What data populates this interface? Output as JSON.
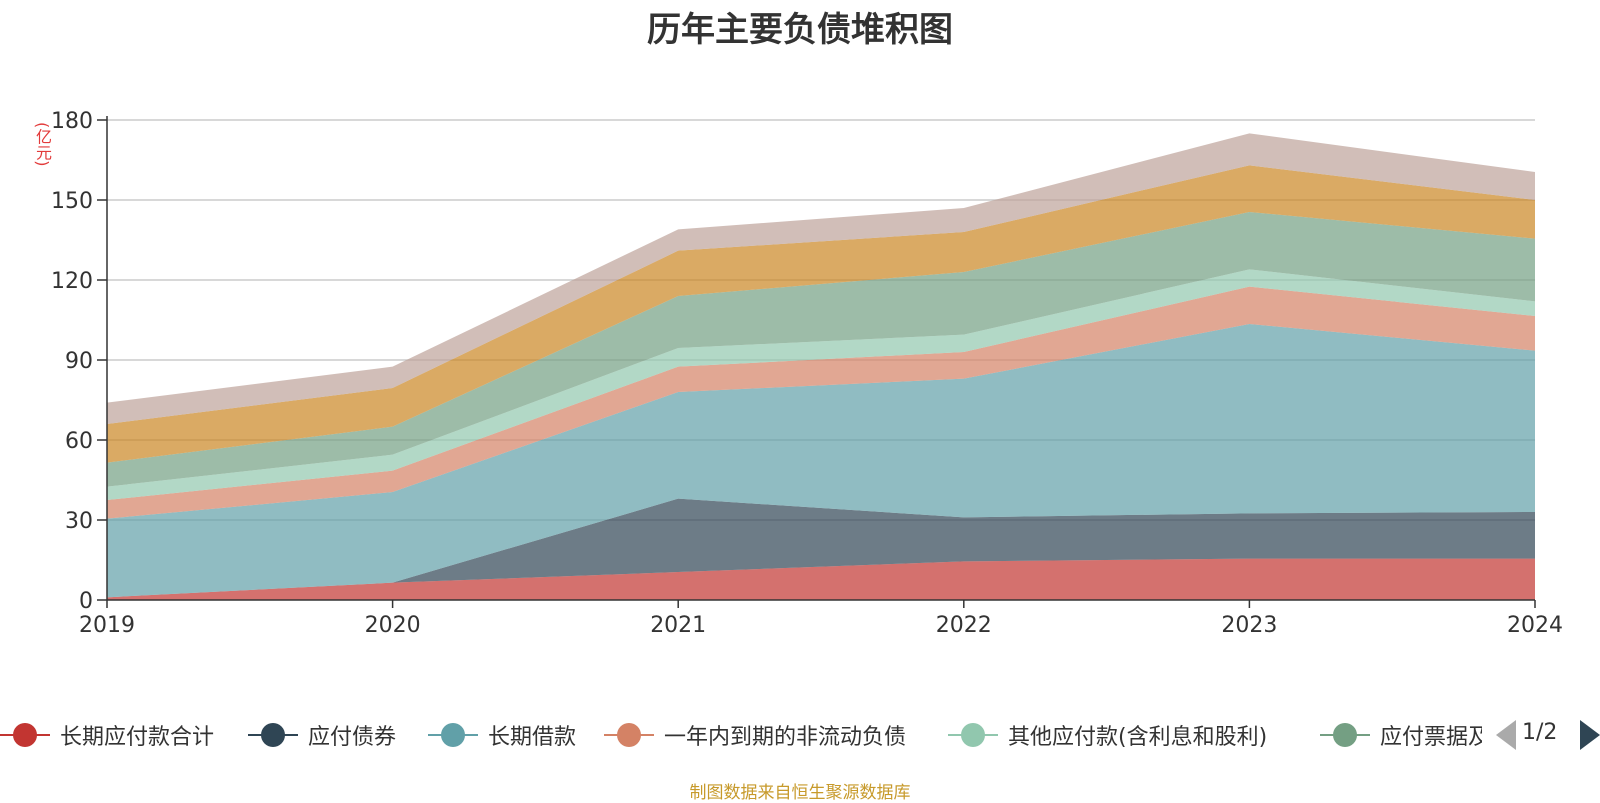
{
  "page": {
    "title": "历年主要负债堆积图",
    "unit": "(亿元)",
    "source": "制图数据来自恒生聚源数据库",
    "pager": "1/2"
  },
  "chart_data": {
    "type": "area",
    "stacked": true,
    "x": [
      "2019",
      "2020",
      "2021",
      "2022",
      "2023",
      "2024"
    ],
    "ylim": [
      0,
      180
    ],
    "yticks": [
      0,
      30,
      60,
      90,
      120,
      150,
      180
    ],
    "grid": true,
    "legend_position": "bottom",
    "series": [
      {
        "name": "长期应付款合计",
        "color": "#c23531",
        "values": [
          1,
          6.5,
          10.5,
          14.5,
          15.5,
          15.5
        ]
      },
      {
        "name": "应付债券",
        "color": "#2f4554",
        "values": [
          0,
          0,
          27.5,
          16.5,
          17,
          17.5
        ]
      },
      {
        "name": "长期借款",
        "color": "#61a0a8",
        "values": [
          29.5,
          34,
          40,
          52,
          71,
          60.5
        ]
      },
      {
        "name": "一年内到期的非流动负债",
        "color": "#d48265",
        "values": [
          7,
          8,
          9.5,
          10,
          14,
          13
        ]
      },
      {
        "name": "其他应付款(含利息和股利)",
        "color": "#91c7ae",
        "values": [
          5,
          6,
          7,
          6.5,
          6.5,
          5.5
        ]
      },
      {
        "name": "应付票据及应付账款",
        "color": "#749f83",
        "values": [
          9,
          10.5,
          19.5,
          23.5,
          21.5,
          23.5
        ]
      },
      {
        "color": "#ca8622",
        "values": [
          14.5,
          14.5,
          17,
          15,
          17.5,
          14.5
        ]
      },
      {
        "color": "#bda29a",
        "values": [
          8,
          8,
          8,
          9,
          12,
          10.5
        ]
      }
    ]
  }
}
